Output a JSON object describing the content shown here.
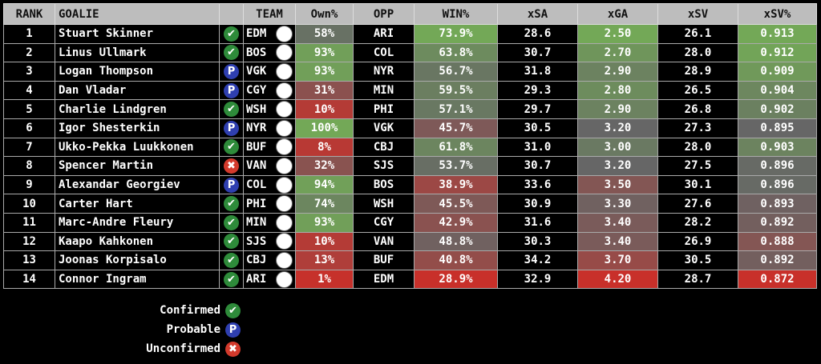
{
  "headers": [
    "RANK",
    "GOALIE",
    "",
    "TEAM",
    "Own%",
    "OPP",
    "WIN%",
    "xSA",
    "xGA",
    "xSV",
    "xSV%"
  ],
  "rows": [
    {
      "rank": "1",
      "goalie": "Stuart Skinner",
      "status": "confirmed",
      "team": "EDM",
      "own": "58%",
      "opp": "ARI",
      "win": "73.9%",
      "xsa": "28.6",
      "xga": "2.50",
      "xsv": "26.1",
      "xsvp": "0.913"
    },
    {
      "rank": "2",
      "goalie": "Linus Ullmark",
      "status": "confirmed",
      "team": "BOS",
      "own": "93%",
      "opp": "COL",
      "win": "63.8%",
      "xsa": "30.7",
      "xga": "2.70",
      "xsv": "28.0",
      "xsvp": "0.912"
    },
    {
      "rank": "3",
      "goalie": "Logan Thompson",
      "status": "probable",
      "team": "VGK",
      "own": "93%",
      "opp": "NYR",
      "win": "56.7%",
      "xsa": "31.8",
      "xga": "2.90",
      "xsv": "28.9",
      "xsvp": "0.909"
    },
    {
      "rank": "4",
      "goalie": "Dan Vladar",
      "status": "probable",
      "team": "CGY",
      "own": "31%",
      "opp": "MIN",
      "win": "59.5%",
      "xsa": "29.3",
      "xga": "2.80",
      "xsv": "26.5",
      "xsvp": "0.904"
    },
    {
      "rank": "5",
      "goalie": "Charlie Lindgren",
      "status": "confirmed",
      "team": "WSH",
      "own": "10%",
      "opp": "PHI",
      "win": "57.1%",
      "xsa": "29.7",
      "xga": "2.90",
      "xsv": "26.8",
      "xsvp": "0.902"
    },
    {
      "rank": "6",
      "goalie": "Igor Shesterkin",
      "status": "probable",
      "team": "NYR",
      "own": "100%",
      "opp": "VGK",
      "win": "45.7%",
      "xsa": "30.5",
      "xga": "3.20",
      "xsv": "27.3",
      "xsvp": "0.895"
    },
    {
      "rank": "7",
      "goalie": "Ukko-Pekka Luukkonen",
      "status": "confirmed",
      "team": "BUF",
      "own": "8%",
      "opp": "CBJ",
      "win": "61.8%",
      "xsa": "31.0",
      "xga": "3.00",
      "xsv": "28.0",
      "xsvp": "0.903"
    },
    {
      "rank": "8",
      "goalie": "Spencer Martin",
      "status": "unconfirmed",
      "team": "VAN",
      "own": "32%",
      "opp": "SJS",
      "win": "53.7%",
      "xsa": "30.7",
      "xga": "3.20",
      "xsv": "27.5",
      "xsvp": "0.896"
    },
    {
      "rank": "9",
      "goalie": "Alexandar Georgiev",
      "status": "probable",
      "team": "COL",
      "own": "94%",
      "opp": "BOS",
      "win": "38.9%",
      "xsa": "33.6",
      "xga": "3.50",
      "xsv": "30.1",
      "xsvp": "0.896"
    },
    {
      "rank": "10",
      "goalie": "Carter Hart",
      "status": "confirmed",
      "team": "PHI",
      "own": "74%",
      "opp": "WSH",
      "win": "45.5%",
      "xsa": "30.9",
      "xga": "3.30",
      "xsv": "27.6",
      "xsvp": "0.893"
    },
    {
      "rank": "11",
      "goalie": "Marc-Andre Fleury",
      "status": "confirmed",
      "team": "MIN",
      "own": "93%",
      "opp": "CGY",
      "win": "42.9%",
      "xsa": "31.6",
      "xga": "3.40",
      "xsv": "28.2",
      "xsvp": "0.892"
    },
    {
      "rank": "12",
      "goalie": "Kaapo Kahkonen",
      "status": "confirmed",
      "team": "SJS",
      "own": "10%",
      "opp": "VAN",
      "win": "48.8%",
      "xsa": "30.3",
      "xga": "3.40",
      "xsv": "26.9",
      "xsvp": "0.888"
    },
    {
      "rank": "13",
      "goalie": "Joonas Korpisalo",
      "status": "confirmed",
      "team": "CBJ",
      "own": "13%",
      "opp": "BUF",
      "win": "40.8%",
      "xsa": "34.2",
      "xga": "3.70",
      "xsv": "30.5",
      "xsvp": "0.892"
    },
    {
      "rank": "14",
      "goalie": "Connor Ingram",
      "status": "confirmed",
      "team": "ARI",
      "own": "1%",
      "opp": "EDM",
      "win": "28.9%",
      "xsa": "32.9",
      "xga": "4.20",
      "xsv": "28.7",
      "xsvp": "0.872"
    }
  ],
  "legend": {
    "confirmed": "Confirmed",
    "probable": "Probable",
    "unconfirmed": "Unconfirmed"
  },
  "colors": {
    "good": "#73a857",
    "mid": "#666666",
    "bad": "#c8302a"
  }
}
